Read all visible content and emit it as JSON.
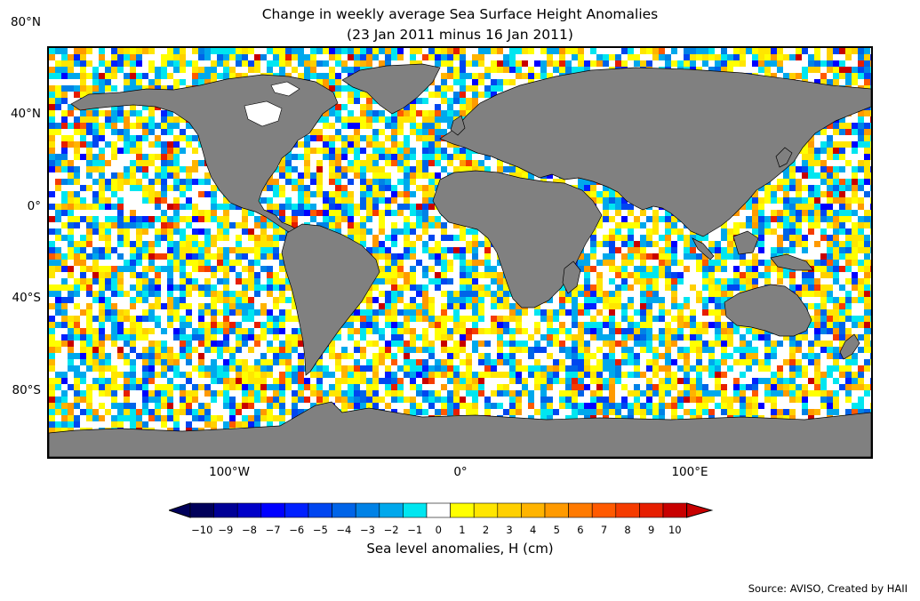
{
  "title": {
    "line1": "Change in weekly average Sea Surface Height Anomalies",
    "line2": "(23 Jan 2011 minus 16 Jan 2011)"
  },
  "map": {
    "land_color": "#808080",
    "lat_labels": [
      "80°N",
      "40°N",
      "0°",
      "40°S",
      "80°S"
    ],
    "lon_labels": [
      "100°W",
      "0°",
      "100°E"
    ]
  },
  "colorbar": {
    "ticks": [
      "−10",
      "−9",
      "−8",
      "−7",
      "−6",
      "−5",
      "−4",
      "−3",
      "−2",
      "−1",
      "0",
      "1",
      "2",
      "3",
      "4",
      "5",
      "6",
      "7",
      "8",
      "9",
      "10"
    ],
    "colors": [
      "#00005a",
      "#000096",
      "#0000c8",
      "#0000ff",
      "#0020ff",
      "#0046f0",
      "#0064e8",
      "#0082e6",
      "#00a8ec",
      "#00e6f0",
      "#ffffff",
      "#ffff00",
      "#ffe600",
      "#ffd000",
      "#ffb400",
      "#ff9a00",
      "#ff7a00",
      "#ff5a00",
      "#f53c00",
      "#e61e00",
      "#c80000"
    ],
    "under_color": "#00005a",
    "over_color": "#c80000",
    "label": "Sea level anomalies, H (cm)"
  },
  "source": "Source: AVISO, Created by HAII"
}
